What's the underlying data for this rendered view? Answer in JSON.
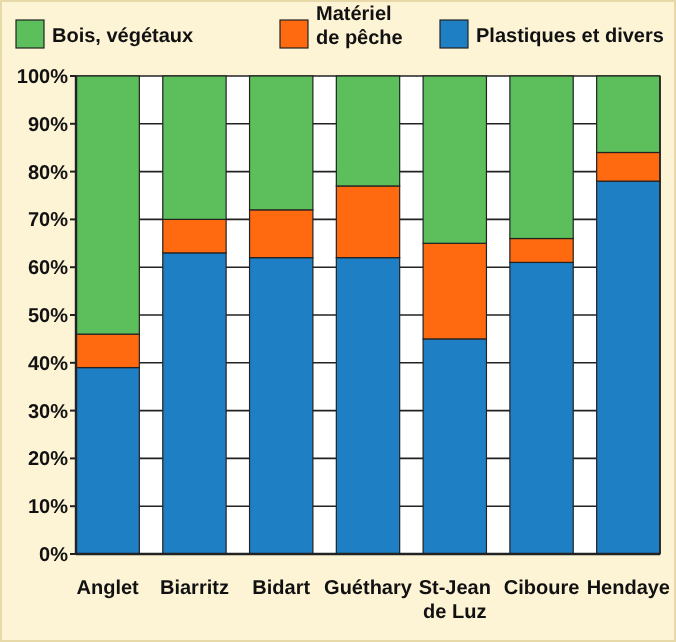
{
  "chart_data": {
    "type": "bar",
    "stacked": true,
    "categories": [
      "Anglet",
      "Biarritz",
      "Bidart",
      "Guéthary",
      "St-Jean de Luz",
      "Ciboure",
      "Hendaye"
    ],
    "series": [
      {
        "name": "Plastiques et divers",
        "color": "#1f7fc4",
        "values": [
          39,
          63,
          62,
          62,
          45,
          61,
          78
        ]
      },
      {
        "name": "Matériel de pêche",
        "color": "#ff6a10",
        "values": [
          7,
          7,
          10,
          15,
          20,
          5,
          6
        ]
      },
      {
        "name": "Bois, végétaux",
        "color": "#5cbf5c",
        "values": [
          54,
          30,
          28,
          23,
          35,
          34,
          16
        ]
      }
    ],
    "ylim": [
      0,
      100
    ],
    "yticks": [
      {
        "value": 0,
        "label": "0%"
      },
      {
        "value": 10,
        "label": "10%"
      },
      {
        "value": 20,
        "label": "20%"
      },
      {
        "value": 30,
        "label": "30%"
      },
      {
        "value": 40,
        "label": "40%"
      },
      {
        "value": 50,
        "label": "50%"
      },
      {
        "value": 60,
        "label": "60%"
      },
      {
        "value": 70,
        "label": "70%"
      },
      {
        "value": 80,
        "label": "80%"
      },
      {
        "value": 90,
        "label": "90%"
      },
      {
        "value": 100,
        "label": "100%"
      }
    ],
    "grid": "y",
    "legend": "top"
  }
}
